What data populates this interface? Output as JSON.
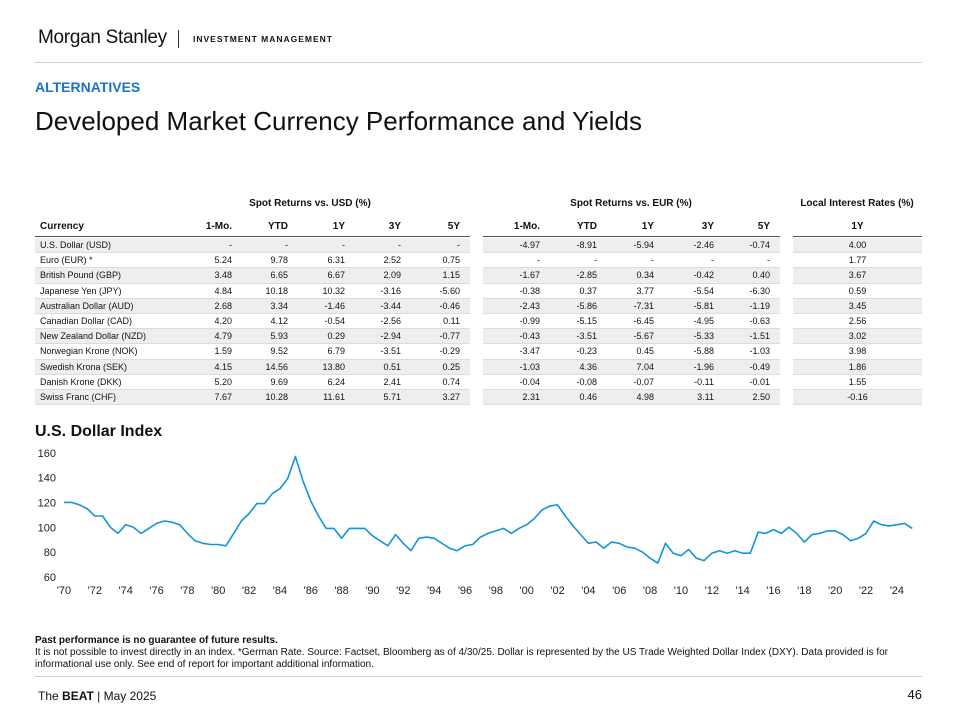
{
  "header": {
    "logo": "Morgan Stanley",
    "division": "INVESTMENT MANAGEMENT",
    "section": "ALTERNATIVES",
    "title": "Developed Market Currency Performance and Yields"
  },
  "table": {
    "group_headers": [
      "Spot Returns vs. USD (%)",
      "Spot Returns vs. EUR (%)",
      "Local Interest Rates (%)"
    ],
    "columns": [
      "Currency",
      "1-Mo.",
      "YTD",
      "1Y",
      "3Y",
      "5Y",
      "1-Mo.",
      "YTD",
      "1Y",
      "3Y",
      "5Y",
      "1Y"
    ],
    "rows": [
      [
        "U.S. Dollar (USD)",
        "-",
        "-",
        "-",
        "-",
        "-",
        "-4.97",
        "-8.91",
        "-5.94",
        "-2.46",
        "-0.74",
        "4.00"
      ],
      [
        "Euro (EUR) *",
        "5.24",
        "9.78",
        "6.31",
        "2.52",
        "0.75",
        "-",
        "-",
        "-",
        "-",
        "-",
        "1.77"
      ],
      [
        "British Pound (GBP)",
        "3.48",
        "6.65",
        "6.67",
        "2.09",
        "1.15",
        "-1.67",
        "-2.85",
        "0.34",
        "-0.42",
        "0.40",
        "3.67"
      ],
      [
        "Japanese Yen (JPY)",
        "4.84",
        "10.18",
        "10.32",
        "-3.16",
        "-5.60",
        "-0.38",
        "0.37",
        "3.77",
        "-5.54",
        "-6.30",
        "0.59"
      ],
      [
        "Australian Dollar (AUD)",
        "2.68",
        "3.34",
        "-1.46",
        "-3.44",
        "-0.46",
        "-2.43",
        "-5.86",
        "-7.31",
        "-5.81",
        "-1.19",
        "3.45"
      ],
      [
        "Canadian Dollar (CAD)",
        "4.20",
        "4.12",
        "-0.54",
        "-2.56",
        "0.11",
        "-0.99",
        "-5.15",
        "-6.45",
        "-4.95",
        "-0.63",
        "2.56"
      ],
      [
        "New Zealand Dollar (NZD)",
        "4.79",
        "5.93",
        "0.29",
        "-2.94",
        "-0.77",
        "-0.43",
        "-3.51",
        "-5.67",
        "-5.33",
        "-1.51",
        "3.02"
      ],
      [
        "Norwegian Krone (NOK)",
        "1.59",
        "9.52",
        "6.79",
        "-3.51",
        "-0.29",
        "-3.47",
        "-0.23",
        "0.45",
        "-5.88",
        "-1.03",
        "3.98"
      ],
      [
        "Swedish Krona (SEK)",
        "4.15",
        "14.56",
        "13.80",
        "0.51",
        "0.25",
        "-1.03",
        "4.36",
        "7.04",
        "-1.96",
        "-0.49",
        "1.86"
      ],
      [
        "Danish Krone (DKK)",
        "5.20",
        "9.69",
        "6.24",
        "2.41",
        "0.74",
        "-0.04",
        "-0.08",
        "-0.07",
        "-0.11",
        "-0.01",
        "1.55"
      ],
      [
        "Swiss Franc (CHF)",
        "7.67",
        "10.28",
        "11.61",
        "5.71",
        "3.27",
        "2.31",
        "0.46",
        "4.98",
        "3.11",
        "2.50",
        "-0.16"
      ]
    ]
  },
  "chart_data": {
    "type": "line",
    "title": "U.S. Dollar Index",
    "x": [
      1970,
      1970.5,
      1971,
      1971.5,
      1972,
      1972.5,
      1973,
      1973.5,
      1974,
      1974.5,
      1975,
      1975.5,
      1976,
      1976.5,
      1977,
      1977.5,
      1978,
      1978.5,
      1979,
      1979.5,
      1980,
      1980.5,
      1981,
      1981.5,
      1982,
      1982.5,
      1983,
      1983.5,
      1984,
      1984.5,
      1985,
      1985.5,
      1986,
      1986.5,
      1987,
      1987.5,
      1988,
      1988.5,
      1989,
      1989.5,
      1990,
      1990.5,
      1991,
      1991.5,
      1992,
      1992.5,
      1993,
      1993.5,
      1994,
      1994.5,
      1995,
      1995.5,
      1996,
      1996.5,
      1997,
      1997.5,
      1998,
      1998.5,
      1999,
      1999.5,
      2000,
      2000.5,
      2001,
      2001.5,
      2002,
      2002.5,
      2003,
      2003.5,
      2004,
      2004.5,
      2005,
      2005.5,
      2006,
      2006.5,
      2007,
      2007.5,
      2008,
      2008.5,
      2009,
      2009.5,
      2010,
      2010.5,
      2011,
      2011.5,
      2012,
      2012.5,
      2013,
      2013.5,
      2014,
      2014.5,
      2015,
      2015.5,
      2016,
      2016.5,
      2017,
      2017.5,
      2018,
      2018.5,
      2019,
      2019.5,
      2020,
      2020.5,
      2021,
      2021.5,
      2022,
      2022.5,
      2023,
      2023.5,
      2024,
      2024.5,
      2025
    ],
    "series": [
      {
        "name": "U.S. Dollar Index",
        "color": "#1495d8",
        "values": [
          121,
          121,
          119,
          116,
          110,
          110,
          101,
          96,
          103,
          101,
          96,
          100,
          104,
          106,
          105,
          103,
          96,
          90,
          88,
          87,
          87,
          86,
          96,
          106,
          112,
          120,
          120,
          128,
          132,
          140,
          158,
          138,
          122,
          110,
          100,
          100,
          92,
          100,
          100,
          100,
          94,
          90,
          86,
          95,
          88,
          82,
          92,
          93,
          92,
          88,
          84,
          82,
          86,
          87,
          93,
          96,
          98,
          100,
          96,
          100,
          103,
          108,
          115,
          118,
          119,
          110,
          102,
          95,
          88,
          89,
          84,
          89,
          88,
          85,
          84,
          81,
          76,
          72,
          88,
          80,
          78,
          83,
          76,
          74,
          80,
          82,
          80,
          82,
          80,
          80,
          97,
          96,
          99,
          96,
          101,
          96,
          89,
          95,
          96,
          98,
          98,
          95,
          90,
          92,
          96,
          106,
          103,
          102,
          103,
          104,
          100
        ]
      }
    ],
    "xlim": [
      1970,
      2025.5
    ],
    "ylim": [
      60,
      160
    ],
    "yticks": [
      60,
      80,
      100,
      120,
      140,
      160
    ],
    "xticks": [
      {
        "value": 1970,
        "label": "'70"
      },
      {
        "value": 1972,
        "label": "'72"
      },
      {
        "value": 1974,
        "label": "'74"
      },
      {
        "value": 1976,
        "label": "'76"
      },
      {
        "value": 1978,
        "label": "'78"
      },
      {
        "value": 1980,
        "label": "'80"
      },
      {
        "value": 1982,
        "label": "'82"
      },
      {
        "value": 1984,
        "label": "'84"
      },
      {
        "value": 1986,
        "label": "'86"
      },
      {
        "value": 1988,
        "label": "'88"
      },
      {
        "value": 1990,
        "label": "'90"
      },
      {
        "value": 1992,
        "label": "'92"
      },
      {
        "value": 1994,
        "label": "'94"
      },
      {
        "value": 1996,
        "label": "'96"
      },
      {
        "value": 1998,
        "label": "'98"
      },
      {
        "value": 2000,
        "label": "'00"
      },
      {
        "value": 2002,
        "label": "'02"
      },
      {
        "value": 2004,
        "label": "'04"
      },
      {
        "value": 2006,
        "label": "'06"
      },
      {
        "value": 2008,
        "label": "'08"
      },
      {
        "value": 2010,
        "label": "'10"
      },
      {
        "value": 2012,
        "label": "'12"
      },
      {
        "value": 2014,
        "label": "'14"
      },
      {
        "value": 2016,
        "label": "'16"
      },
      {
        "value": 2018,
        "label": "'18"
      },
      {
        "value": 2020,
        "label": "'20"
      },
      {
        "value": 2022,
        "label": "'22"
      },
      {
        "value": 2024,
        "label": "'24"
      }
    ],
    "grid": false
  },
  "notes": {
    "disclaimer": "Past performance is no guarantee of future results.",
    "text": "It is not possible to invest directly in an index. *German Rate. Source: Factset, Bloomberg as of 4/30/25. Dollar is represented by the US Trade Weighted Dollar Index (DXY). Data provided is for informational use only. See end of report for important additional information."
  },
  "footer": {
    "prefix": "The",
    "brand": "BEAT",
    "date": "| May 2025",
    "page": "46"
  }
}
